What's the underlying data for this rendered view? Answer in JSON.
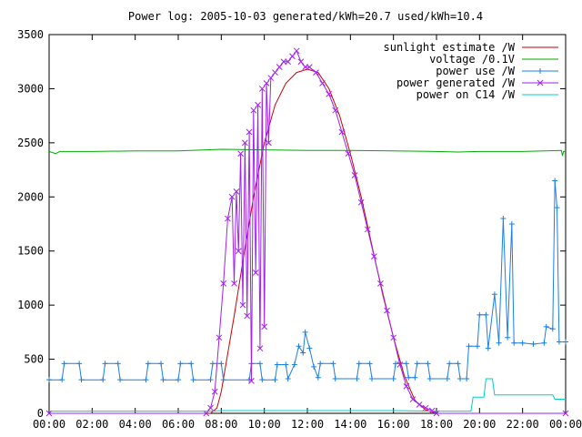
{
  "chart_data": {
    "type": "line",
    "title": "Power log: 2005-10-03 generated/kWh=20.7 used/kWh=10.4",
    "xlabel": "",
    "ylabel": "",
    "xlim": [
      0,
      24
    ],
    "ylim": [
      0,
      3500
    ],
    "x_ticks": [
      "00:00",
      "02:00",
      "04:00",
      "06:00",
      "08:00",
      "10:00",
      "12:00",
      "14:00",
      "16:00",
      "18:00",
      "20:00",
      "22:00",
      "00:00"
    ],
    "x_tick_values": [
      0,
      2,
      4,
      6,
      8,
      10,
      12,
      14,
      16,
      18,
      20,
      22,
      24
    ],
    "y_ticks": [
      0,
      500,
      1000,
      1500,
      2000,
      2500,
      3000,
      3500
    ],
    "grid": false,
    "legend_position": "top-right",
    "series": [
      {
        "name": "sunlight estimate /W",
        "color": "#cc0000",
        "marker": "none",
        "points": [
          [
            0,
            0
          ],
          [
            7.5,
            0
          ],
          [
            7.8,
            50
          ],
          [
            8.0,
            200
          ],
          [
            8.3,
            550
          ],
          [
            8.6,
            900
          ],
          [
            9.0,
            1400
          ],
          [
            9.5,
            2000
          ],
          [
            10.0,
            2500
          ],
          [
            10.5,
            2850
          ],
          [
            11.0,
            3050
          ],
          [
            11.5,
            3150
          ],
          [
            12.0,
            3180
          ],
          [
            12.5,
            3150
          ],
          [
            13.0,
            3000
          ],
          [
            13.5,
            2750
          ],
          [
            14.0,
            2400
          ],
          [
            14.5,
            2000
          ],
          [
            15.0,
            1550
          ],
          [
            15.5,
            1100
          ],
          [
            16.0,
            700
          ],
          [
            16.5,
            350
          ],
          [
            17.0,
            120
          ],
          [
            17.5,
            30
          ],
          [
            18.0,
            0
          ],
          [
            24,
            0
          ]
        ]
      },
      {
        "name": "voltage /0.1V",
        "color": "#00aa00",
        "marker": "none",
        "points": [
          [
            0,
            2420
          ],
          [
            0.3,
            2400
          ],
          [
            0.5,
            2420
          ],
          [
            2,
            2420
          ],
          [
            4,
            2425
          ],
          [
            6,
            2425
          ],
          [
            8,
            2440
          ],
          [
            10,
            2435
          ],
          [
            12,
            2430
          ],
          [
            14,
            2430
          ],
          [
            16,
            2425
          ],
          [
            18,
            2420
          ],
          [
            19,
            2415
          ],
          [
            20,
            2420
          ],
          [
            22,
            2420
          ],
          [
            23.8,
            2430
          ],
          [
            23.85,
            2380
          ],
          [
            23.9,
            2420
          ],
          [
            24,
            2420
          ]
        ]
      },
      {
        "name": "power use /W",
        "color": "#1a7fe6",
        "marker": "plus",
        "points": [
          [
            0,
            310
          ],
          [
            0.6,
            310
          ],
          [
            0.7,
            460
          ],
          [
            1.4,
            460
          ],
          [
            1.5,
            310
          ],
          [
            2.5,
            310
          ],
          [
            2.6,
            460
          ],
          [
            3.2,
            460
          ],
          [
            3.3,
            310
          ],
          [
            4.5,
            310
          ],
          [
            4.6,
            460
          ],
          [
            5.2,
            460
          ],
          [
            5.3,
            310
          ],
          [
            6.0,
            310
          ],
          [
            6.1,
            460
          ],
          [
            6.6,
            460
          ],
          [
            6.7,
            310
          ],
          [
            7.5,
            310
          ],
          [
            7.6,
            460
          ],
          [
            8.0,
            460
          ],
          [
            8.1,
            310
          ],
          [
            9.3,
            310
          ],
          [
            9.4,
            460
          ],
          [
            9.8,
            460
          ],
          [
            9.9,
            310
          ],
          [
            10.5,
            310
          ],
          [
            10.6,
            450
          ],
          [
            11.0,
            450
          ],
          [
            11.1,
            320
          ],
          [
            11.4,
            450
          ],
          [
            11.6,
            620
          ],
          [
            11.8,
            560
          ],
          [
            11.9,
            750
          ],
          [
            12.1,
            600
          ],
          [
            12.3,
            430
          ],
          [
            12.5,
            330
          ],
          [
            12.6,
            460
          ],
          [
            13.2,
            460
          ],
          [
            13.3,
            320
          ],
          [
            14.3,
            320
          ],
          [
            14.4,
            460
          ],
          [
            14.9,
            460
          ],
          [
            15.0,
            320
          ],
          [
            16.0,
            320
          ],
          [
            16.1,
            460
          ],
          [
            16.6,
            460
          ],
          [
            16.7,
            330
          ],
          [
            17.0,
            330
          ],
          [
            17.1,
            460
          ],
          [
            17.6,
            460
          ],
          [
            17.7,
            320
          ],
          [
            18.5,
            320
          ],
          [
            18.6,
            460
          ],
          [
            19.0,
            460
          ],
          [
            19.1,
            320
          ],
          [
            19.4,
            320
          ],
          [
            19.5,
            620
          ],
          [
            19.9,
            620
          ],
          [
            20.0,
            910
          ],
          [
            20.3,
            910
          ],
          [
            20.4,
            600
          ],
          [
            20.7,
            1100
          ],
          [
            20.9,
            650
          ],
          [
            21.1,
            1800
          ],
          [
            21.3,
            700
          ],
          [
            21.5,
            1750
          ],
          [
            21.6,
            650
          ],
          [
            22.0,
            650
          ],
          [
            22.5,
            640
          ],
          [
            23.0,
            650
          ],
          [
            23.1,
            800
          ],
          [
            23.4,
            780
          ],
          [
            23.5,
            2150
          ],
          [
            23.6,
            1900
          ],
          [
            23.7,
            660
          ],
          [
            24,
            660
          ]
        ]
      },
      {
        "name": "power generated /W",
        "color": "#a020f0",
        "marker": "cross",
        "points": [
          [
            0,
            0
          ],
          [
            7.3,
            0
          ],
          [
            7.5,
            50
          ],
          [
            7.7,
            200
          ],
          [
            7.9,
            700
          ],
          [
            8.1,
            1200
          ],
          [
            8.3,
            1800
          ],
          [
            8.5,
            2000
          ],
          [
            8.6,
            1200
          ],
          [
            8.7,
            2050
          ],
          [
            8.8,
            1500
          ],
          [
            8.9,
            2400
          ],
          [
            9.0,
            1000
          ],
          [
            9.1,
            2500
          ],
          [
            9.2,
            900
          ],
          [
            9.3,
            2600
          ],
          [
            9.4,
            300
          ],
          [
            9.5,
            2800
          ],
          [
            9.6,
            1300
          ],
          [
            9.7,
            2850
          ],
          [
            9.8,
            600
          ],
          [
            9.9,
            3000
          ],
          [
            10.0,
            800
          ],
          [
            10.1,
            3050
          ],
          [
            10.2,
            2500
          ],
          [
            10.3,
            3100
          ],
          [
            10.5,
            3150
          ],
          [
            10.7,
            3200
          ],
          [
            10.9,
            3250
          ],
          [
            11.1,
            3250
          ],
          [
            11.3,
            3300
          ],
          [
            11.5,
            3350
          ],
          [
            11.7,
            3250
          ],
          [
            11.9,
            3200
          ],
          [
            12.1,
            3200
          ],
          [
            12.4,
            3150
          ],
          [
            12.7,
            3050
          ],
          [
            13.0,
            2950
          ],
          [
            13.3,
            2800
          ],
          [
            13.6,
            2600
          ],
          [
            13.9,
            2400
          ],
          [
            14.2,
            2200
          ],
          [
            14.5,
            1950
          ],
          [
            14.8,
            1700
          ],
          [
            15.1,
            1450
          ],
          [
            15.4,
            1200
          ],
          [
            15.7,
            950
          ],
          [
            16.0,
            700
          ],
          [
            16.3,
            450
          ],
          [
            16.6,
            250
          ],
          [
            16.9,
            130
          ],
          [
            17.2,
            80
          ],
          [
            17.5,
            50
          ],
          [
            17.8,
            25
          ],
          [
            18.0,
            0
          ],
          [
            24,
            0
          ]
        ]
      },
      {
        "name": "power on C14 /W",
        "color": "#00cccc",
        "marker": "none",
        "points": [
          [
            0,
            20
          ],
          [
            2,
            20
          ],
          [
            4,
            20
          ],
          [
            6,
            20
          ],
          [
            7.5,
            20
          ],
          [
            8,
            25
          ],
          [
            10,
            25
          ],
          [
            12,
            25
          ],
          [
            14,
            25
          ],
          [
            16,
            25
          ],
          [
            18,
            20
          ],
          [
            19.6,
            20
          ],
          [
            19.7,
            150
          ],
          [
            20.2,
            150
          ],
          [
            20.3,
            320
          ],
          [
            20.6,
            320
          ],
          [
            20.7,
            170
          ],
          [
            22,
            170
          ],
          [
            23.4,
            170
          ],
          [
            23.5,
            130
          ],
          [
            24,
            130
          ]
        ]
      }
    ]
  }
}
